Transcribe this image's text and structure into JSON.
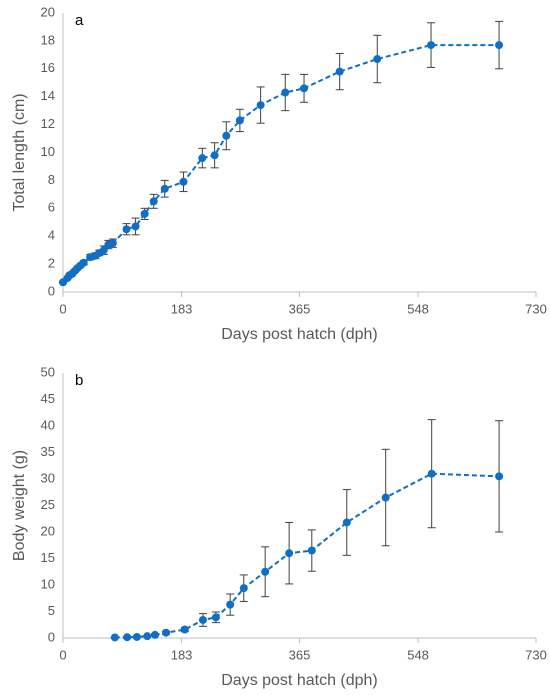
{
  "chart_data": [
    {
      "type": "line",
      "annotation": "a",
      "xlabel": "Days post hatch (dph)",
      "ylabel": "Total length (cm)",
      "xlim": [
        0,
        730
      ],
      "xticks": [
        0,
        183,
        365,
        548,
        730
      ],
      "ylim": [
        0,
        20
      ],
      "yticks": [
        0,
        2,
        4,
        6,
        8,
        10,
        12,
        14,
        16,
        18,
        20
      ],
      "series": [
        {
          "color": "#0f6fc6",
          "x": [
            0,
            7,
            10,
            14,
            18,
            22,
            27,
            32,
            42,
            50,
            56,
            63,
            70,
            77,
            98,
            112,
            126,
            140,
            157,
            186,
            215,
            234,
            252,
            273,
            305,
            343,
            372,
            427,
            485,
            568,
            673
          ],
          "values": [
            0.7,
            1.0,
            1.2,
            1.3,
            1.5,
            1.7,
            1.9,
            2.1,
            2.5,
            2.6,
            2.8,
            3.0,
            3.4,
            3.5,
            4.5,
            4.7,
            5.6,
            6.5,
            7.4,
            7.9,
            9.6,
            9.8,
            11.2,
            12.3,
            13.4,
            14.3,
            14.6,
            15.8,
            16.7,
            17.7,
            17.7
          ],
          "errors": [
            0.05,
            0.05,
            0.1,
            0.1,
            0.1,
            0.1,
            0.1,
            0.15,
            0.2,
            0.2,
            0.2,
            0.3,
            0.3,
            0.3,
            0.4,
            0.6,
            0.4,
            0.5,
            0.6,
            0.7,
            0.7,
            0.9,
            1.0,
            0.8,
            1.3,
            1.3,
            1.0,
            1.3,
            1.7,
            1.6,
            1.7
          ]
        }
      ]
    },
    {
      "type": "line",
      "annotation": "b",
      "xlabel": "Days post hatch (dph)",
      "ylabel": "Body weight (g)",
      "xlim": [
        0,
        730
      ],
      "xticks": [
        0,
        183,
        365,
        548,
        730
      ],
      "ylim": [
        0,
        50
      ],
      "yticks": [
        0,
        5,
        10,
        15,
        20,
        25,
        30,
        35,
        40,
        45,
        50
      ],
      "series": [
        {
          "color": "#0f6fc6",
          "x": [
            80,
            99,
            114,
            130,
            142,
            159,
            188,
            216,
            236,
            258,
            279,
            312,
            349,
            384,
            438,
            498,
            569,
            673
          ],
          "values": [
            0.1,
            0.15,
            0.2,
            0.35,
            0.6,
            1.0,
            1.6,
            3.4,
            3.9,
            6.3,
            9.4,
            12.5,
            16.0,
            16.5,
            21.8,
            26.5,
            31.0,
            30.5
          ],
          "errors": [
            0,
            0,
            0,
            0.1,
            0.2,
            0.3,
            0.4,
            1.2,
            1.0,
            2.0,
            2.5,
            4.7,
            5.8,
            3.9,
            6.2,
            9.1,
            10.2,
            10.5
          ]
        }
      ]
    }
  ]
}
